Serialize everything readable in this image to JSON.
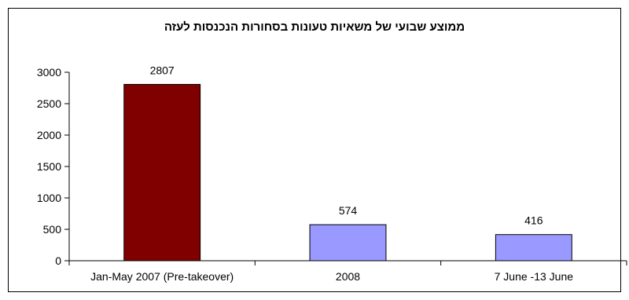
{
  "chart_data": {
    "type": "bar",
    "title": "ממוצע שבועי של משאיות טעונות בסחורות הנכנסות לעזה",
    "categories": [
      "Jan-May 2007 (Pre-takeover)",
      "2008",
      "7 June -13 June"
    ],
    "values": [
      2807,
      574,
      416
    ],
    "data_labels": [
      "2807",
      "574",
      "416"
    ],
    "bar_colors": [
      "#800000",
      "#9999ff",
      "#9999ff"
    ],
    "ylim": [
      0,
      3000
    ],
    "yticks": [
      0,
      500,
      1000,
      1500,
      2000,
      2500,
      3000
    ],
    "grid": false,
    "legend": "none"
  }
}
